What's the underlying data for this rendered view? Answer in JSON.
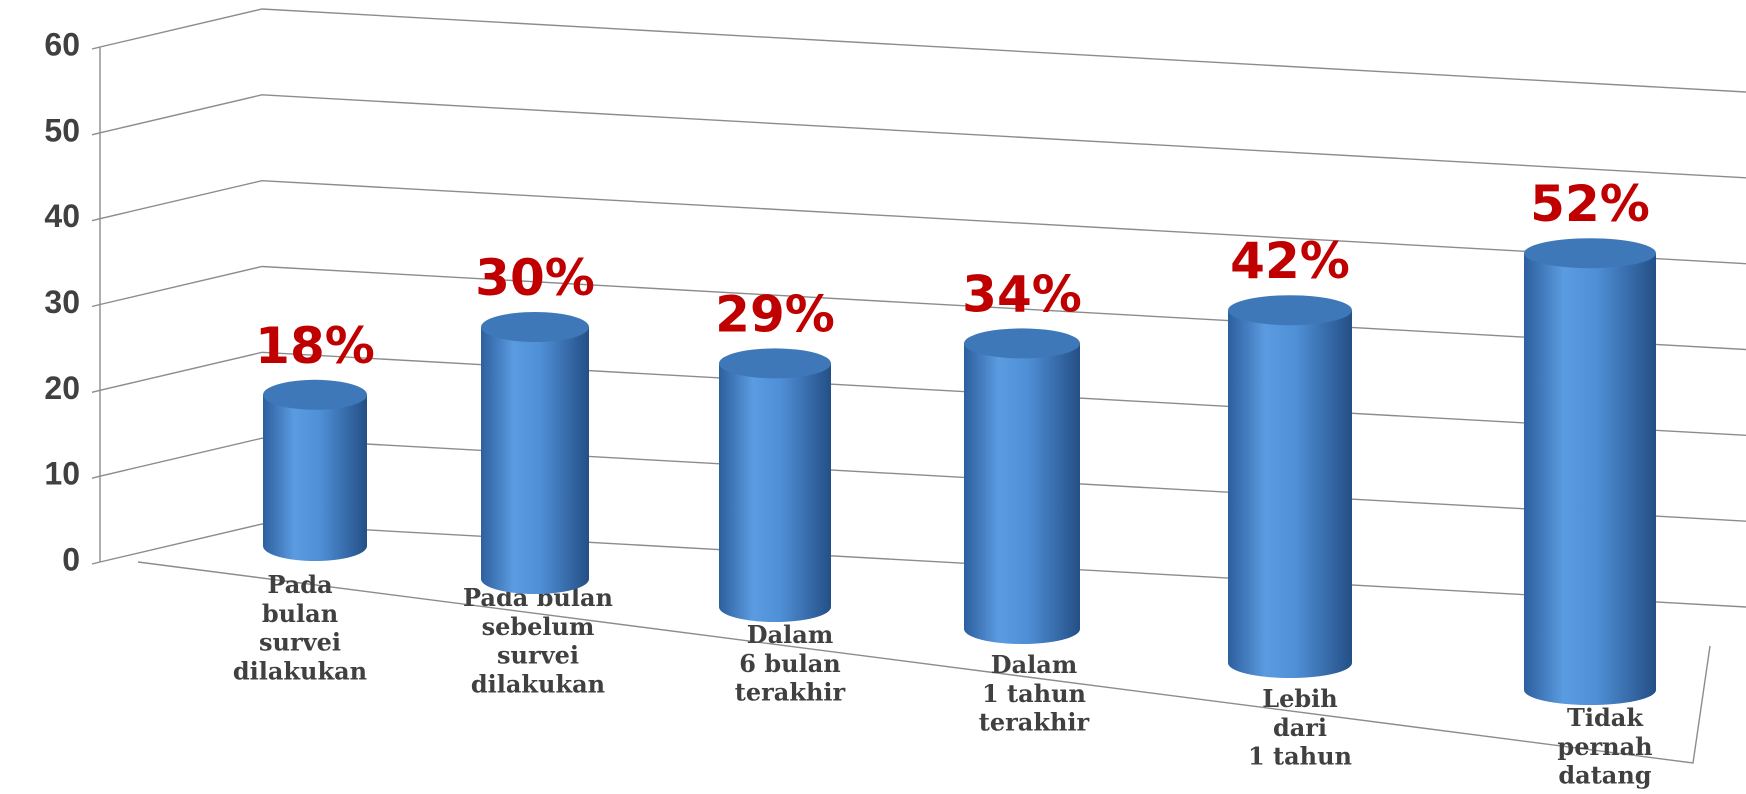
{
  "chart_data": {
    "type": "bar3d-cylinder",
    "categories": [
      "Pada\nbulan\nsurvei\ndilakukan",
      "Pada bulan\nsebelum\nsurvei\ndilakukan",
      "Dalam\n6 bulan\nterakhir",
      "Dalam\n1 tahun\nterakhir",
      "Lebih\ndari\n1 tahun",
      "Tidak\npernah\ndatang"
    ],
    "values": [
      18,
      30,
      29,
      34,
      42,
      52
    ],
    "value_labels": [
      "18%",
      "30%",
      "29%",
      "34%",
      "42%",
      "52%"
    ],
    "color": "#4f8fd6",
    "label_color": "#c00000",
    "ylim": [
      0,
      60
    ],
    "yticks": [
      0,
      10,
      20,
      30,
      40,
      50,
      60
    ],
    "grid": true
  }
}
